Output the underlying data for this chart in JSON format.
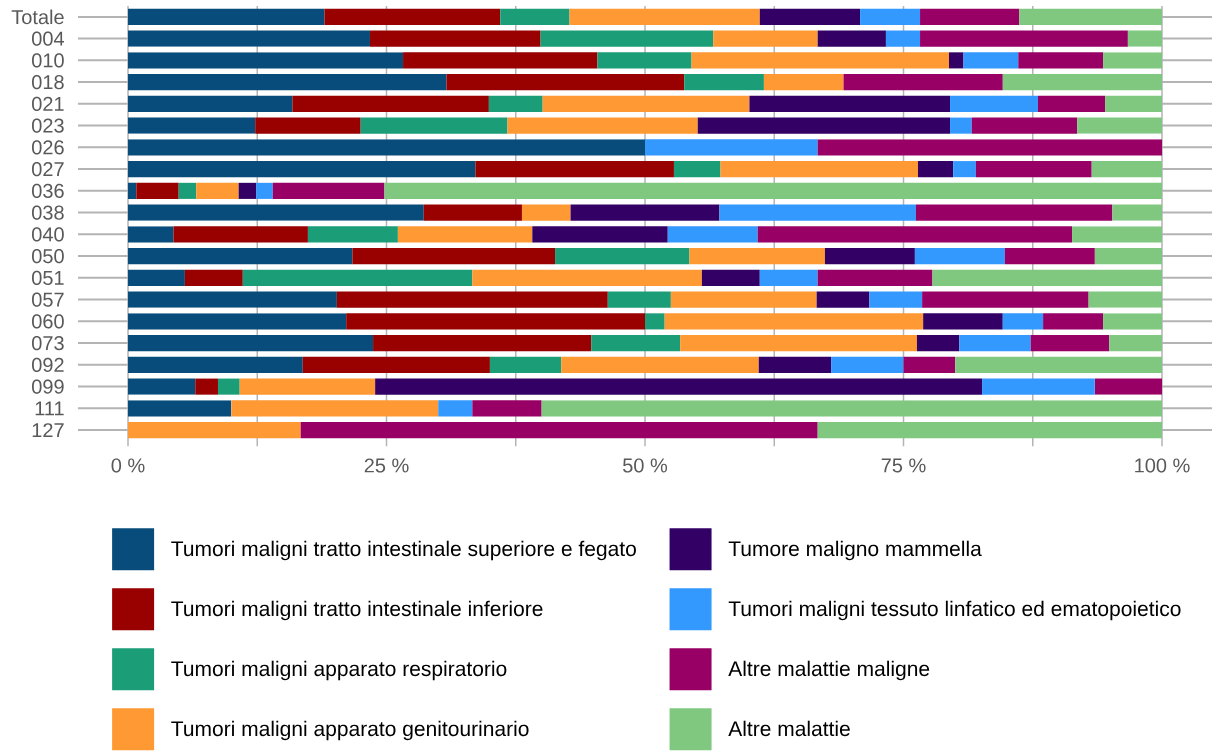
{
  "chart_data": {
    "type": "bar",
    "orientation": "horizontal",
    "stacked": true,
    "categories": [
      "Totale",
      "004",
      "010",
      "018",
      "021",
      "023",
      "026",
      "027",
      "036",
      "038",
      "040",
      "050",
      "051",
      "057",
      "060",
      "073",
      "092",
      "099",
      "111",
      "127"
    ],
    "series": [
      {
        "name": "Tumori maligni tratto intestinale superiore e fegato",
        "color": "#074c7b",
        "values": [
          19.0,
          23.4,
          26.6,
          30.8,
          15.9,
          12.3,
          50.0,
          33.6,
          0.8,
          28.6,
          4.4,
          21.7,
          5.5,
          20.2,
          21.1,
          23.7,
          16.9,
          6.5,
          10.0,
          null
        ]
      },
      {
        "name": "Tumori maligni tratto intestinale inferiore",
        "color": "#990000",
        "values": [
          17.0,
          16.5,
          18.8,
          23.0,
          19.0,
          10.2,
          null,
          19.2,
          4.1,
          9.5,
          13.0,
          19.6,
          5.6,
          26.2,
          28.9,
          21.1,
          18.1,
          2.2,
          null,
          null
        ]
      },
      {
        "name": "Tumori maligni apparato respiratorio",
        "color": "#1b9e77",
        "values": [
          6.7,
          16.7,
          9.1,
          7.7,
          5.2,
          14.2,
          null,
          4.5,
          1.7,
          null,
          8.7,
          13.0,
          22.2,
          6.1,
          1.9,
          8.6,
          6.9,
          2.1,
          null,
          null
        ]
      },
      {
        "name": "Tumori maligni apparato genitourinario",
        "color": "#ff9933",
        "values": [
          18.4,
          10.1,
          24.9,
          7.7,
          20.0,
          18.4,
          null,
          19.1,
          4.1,
          4.7,
          13.0,
          13.1,
          22.2,
          14.1,
          25.0,
          22.9,
          19.1,
          13.1,
          20.0,
          16.7
        ]
      },
      {
        "name": "Tumore maligno mammella",
        "color": "#330066",
        "values": [
          9.7,
          6.6,
          1.4,
          null,
          19.4,
          24.4,
          null,
          3.4,
          1.7,
          14.4,
          13.1,
          8.7,
          5.6,
          5.1,
          7.7,
          4.1,
          7.0,
          58.7,
          null,
          null
        ]
      },
      {
        "name": "Tumori maligni tessuto linfatico ed ematopoietico",
        "color": "#3399ff",
        "values": [
          5.8,
          3.3,
          5.3,
          null,
          8.5,
          2.1,
          16.7,
          2.2,
          1.6,
          19.0,
          8.7,
          8.7,
          5.6,
          5.1,
          3.9,
          6.9,
          7.0,
          10.9,
          3.3,
          null
        ]
      },
      {
        "name": "Altre malattie maligne",
        "color": "#990066",
        "values": [
          9.6,
          20.1,
          8.2,
          15.4,
          6.5,
          10.2,
          33.3,
          11.2,
          10.8,
          19.0,
          30.4,
          8.7,
          11.1,
          16.1,
          5.8,
          7.6,
          5.0,
          6.5,
          6.7,
          50.0
        ]
      },
      {
        "name": "Altre malattie",
        "color": "#80c880",
        "values": [
          13.8,
          3.3,
          5.7,
          15.4,
          5.5,
          8.2,
          null,
          6.8,
          75.2,
          4.8,
          8.7,
          6.5,
          22.2,
          7.1,
          5.7,
          5.1,
          20.0,
          null,
          60.0,
          33.3
        ]
      }
    ],
    "xlim": [
      0,
      100
    ],
    "xticks": [
      {
        "value": 0,
        "label": "0 %"
      },
      {
        "value": 12.5,
        "label": null
      },
      {
        "value": 25,
        "label": "25 %"
      },
      {
        "value": 37.5,
        "label": null
      },
      {
        "value": 50,
        "label": "50 %"
      },
      {
        "value": 62.5,
        "label": null
      },
      {
        "value": 75,
        "label": "75 %"
      },
      {
        "value": 87.5,
        "label": null
      },
      {
        "value": 100,
        "label": "100 %"
      }
    ],
    "grid": "x",
    "legend": "bottom"
  }
}
